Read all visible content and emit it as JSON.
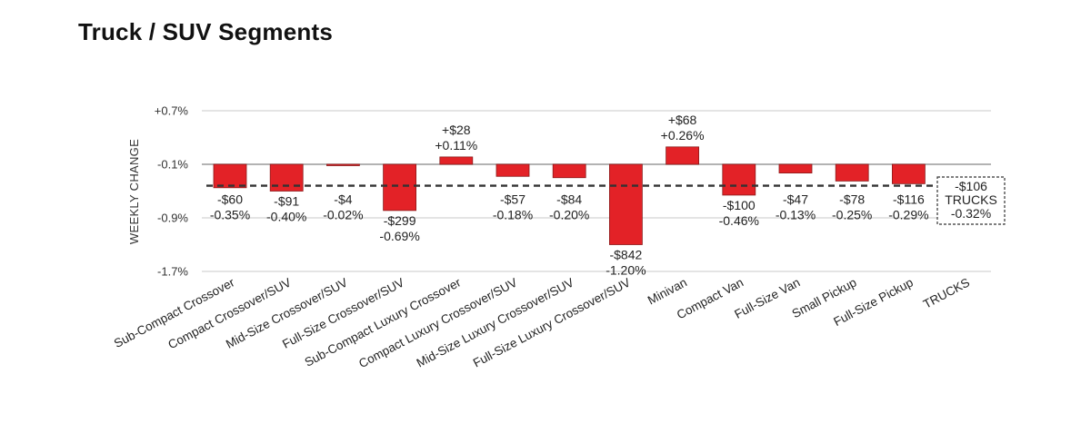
{
  "page": {
    "title": "Truck / SUV Segments"
  },
  "chart_data": {
    "type": "bar",
    "title": "Truck / SUV Segments",
    "ylabel": "WEEKLY CHANGE",
    "xlabel": "",
    "ylim": [
      -1.7,
      0.7
    ],
    "yticks": [
      0.7,
      -0.1,
      -0.9,
      -1.7
    ],
    "ytick_labels": [
      "+0.7%",
      "-0.1%",
      "-0.9%",
      "-1.7%"
    ],
    "baseline": -0.1,
    "reference_line": {
      "value": -0.32,
      "label_dollar": "-$106",
      "label_name": "TRUCKS",
      "label_pct": "-0.32%"
    },
    "categories": [
      "Sub-Compact Crossover",
      "Compact Crossover/SUV",
      "Mid-Size Crossover/SUV",
      "Full-Size Crossover/SUV",
      "Sub-Compact Luxury Crossover",
      "Compact Luxury Crossover/SUV",
      "Mid-Size Luxury Crossover/SUV",
      "Full-Size Luxury Crossover/SUV",
      "Minivan",
      "Compact Van",
      "Full-Size Van",
      "Small Pickup",
      "Full-Size Pickup",
      "TRUCKS"
    ],
    "values": [
      -0.35,
      -0.4,
      -0.02,
      -0.69,
      0.11,
      -0.18,
      -0.2,
      -1.2,
      0.26,
      -0.46,
      -0.13,
      -0.25,
      -0.29,
      -0.32
    ],
    "dollar_labels": [
      "-$60",
      "-$91",
      "-$4",
      "-$299",
      "+$28",
      "-$57",
      "-$84",
      "-$842",
      "+$68",
      "-$100",
      "-$47",
      "-$78",
      "-$116",
      "-$106"
    ],
    "pct_labels": [
      "-0.35%",
      "-0.40%",
      "-0.02%",
      "-0.69%",
      "+0.11%",
      "-0.18%",
      "-0.20%",
      "-1.20%",
      "+0.26%",
      "-0.46%",
      "-0.13%",
      "-0.25%",
      "-0.29%",
      "-0.32%"
    ],
    "colors": {
      "bar": "#e32227",
      "bar_edge": "#8a1a1a",
      "grid": "#c8c8c8",
      "baseline": "#9a9a9a",
      "reference": "#333333"
    }
  }
}
